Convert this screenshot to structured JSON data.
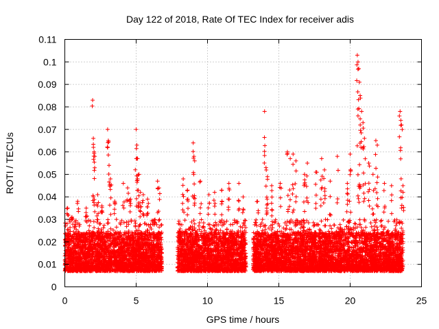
{
  "chart_data": {
    "type": "scatter",
    "title": "Day 122 of 2018, Rate Of TEC Index for receiver adis",
    "xlabel": "GPS time / hours",
    "ylabel": "ROTI / TECUs",
    "xlim": [
      0,
      25
    ],
    "ylim": [
      0,
      0.11
    ],
    "x_ticks": [
      0,
      5,
      10,
      15,
      20,
      25
    ],
    "x_tick_labels": [
      "0",
      "5",
      "10",
      "15",
      "20",
      "25"
    ],
    "y_ticks": [
      0,
      0.01,
      0.02,
      0.03,
      0.04,
      0.05,
      0.06,
      0.07,
      0.08,
      0.09,
      0.1,
      0.11
    ],
    "y_tick_labels": [
      "0",
      "0.01",
      "0.02",
      "0.03",
      "0.04",
      "0.05",
      "0.06",
      "0.07",
      "0.08",
      "0.09",
      "0.1",
      "0.11"
    ],
    "grid": true,
    "marker": "+",
    "color": "#ff0000",
    "series": [
      {
        "name": "ROTI",
        "coverage_hours": [
          [
            0,
            6.8
          ],
          [
            7.9,
            12.7
          ],
          [
            13.2,
            23.7
          ]
        ],
        "typical_range": [
          0.003,
          0.03
        ],
        "x": [
          0.2,
          0.5,
          0.9,
          1.5,
          1.95,
          2.0,
          2.05,
          2.1,
          2.3,
          2.6,
          3.0,
          3.05,
          3.1,
          3.2,
          3.5,
          4.1,
          4.4,
          4.6,
          5.0,
          5.05,
          5.1,
          5.2,
          5.3,
          5.5,
          5.8,
          6.5,
          6.6,
          8.3,
          8.6,
          9.0,
          9.05,
          9.1,
          9.5,
          10.1,
          10.5,
          11.0,
          11.5,
          12.2,
          12.5,
          13.5,
          14.0,
          14.1,
          14.2,
          14.5,
          15.1,
          15.6,
          15.8,
          16.0,
          16.2,
          16.8,
          17.0,
          17.6,
          18.0,
          18.2,
          18.6,
          19.1,
          19.8,
          20.0,
          20.5,
          20.55,
          20.6,
          20.65,
          20.7,
          20.8,
          20.9,
          21.0,
          21.3,
          21.6,
          21.8,
          21.9,
          22.4,
          22.9,
          23.5,
          23.55,
          23.6,
          23.7
        ],
        "y": [
          0.035,
          0.031,
          0.038,
          0.035,
          0.083,
          0.066,
          0.06,
          0.058,
          0.041,
          0.036,
          0.07,
          0.065,
          0.054,
          0.048,
          0.038,
          0.046,
          0.044,
          0.039,
          0.07,
          0.063,
          0.057,
          0.05,
          0.042,
          0.041,
          0.039,
          0.047,
          0.044,
          0.048,
          0.043,
          0.064,
          0.058,
          0.056,
          0.047,
          0.041,
          0.042,
          0.043,
          0.046,
          0.046,
          0.04,
          0.038,
          0.078,
          0.053,
          0.049,
          0.045,
          0.046,
          0.06,
          0.057,
          0.059,
          0.056,
          0.05,
          0.055,
          0.051,
          0.057,
          0.052,
          0.047,
          0.058,
          0.046,
          0.059,
          0.103,
          0.1,
          0.097,
          0.091,
          0.085,
          0.078,
          0.073,
          0.066,
          0.055,
          0.05,
          0.065,
          0.063,
          0.046,
          0.045,
          0.078,
          0.074,
          0.072,
          0.045
        ]
      }
    ]
  }
}
